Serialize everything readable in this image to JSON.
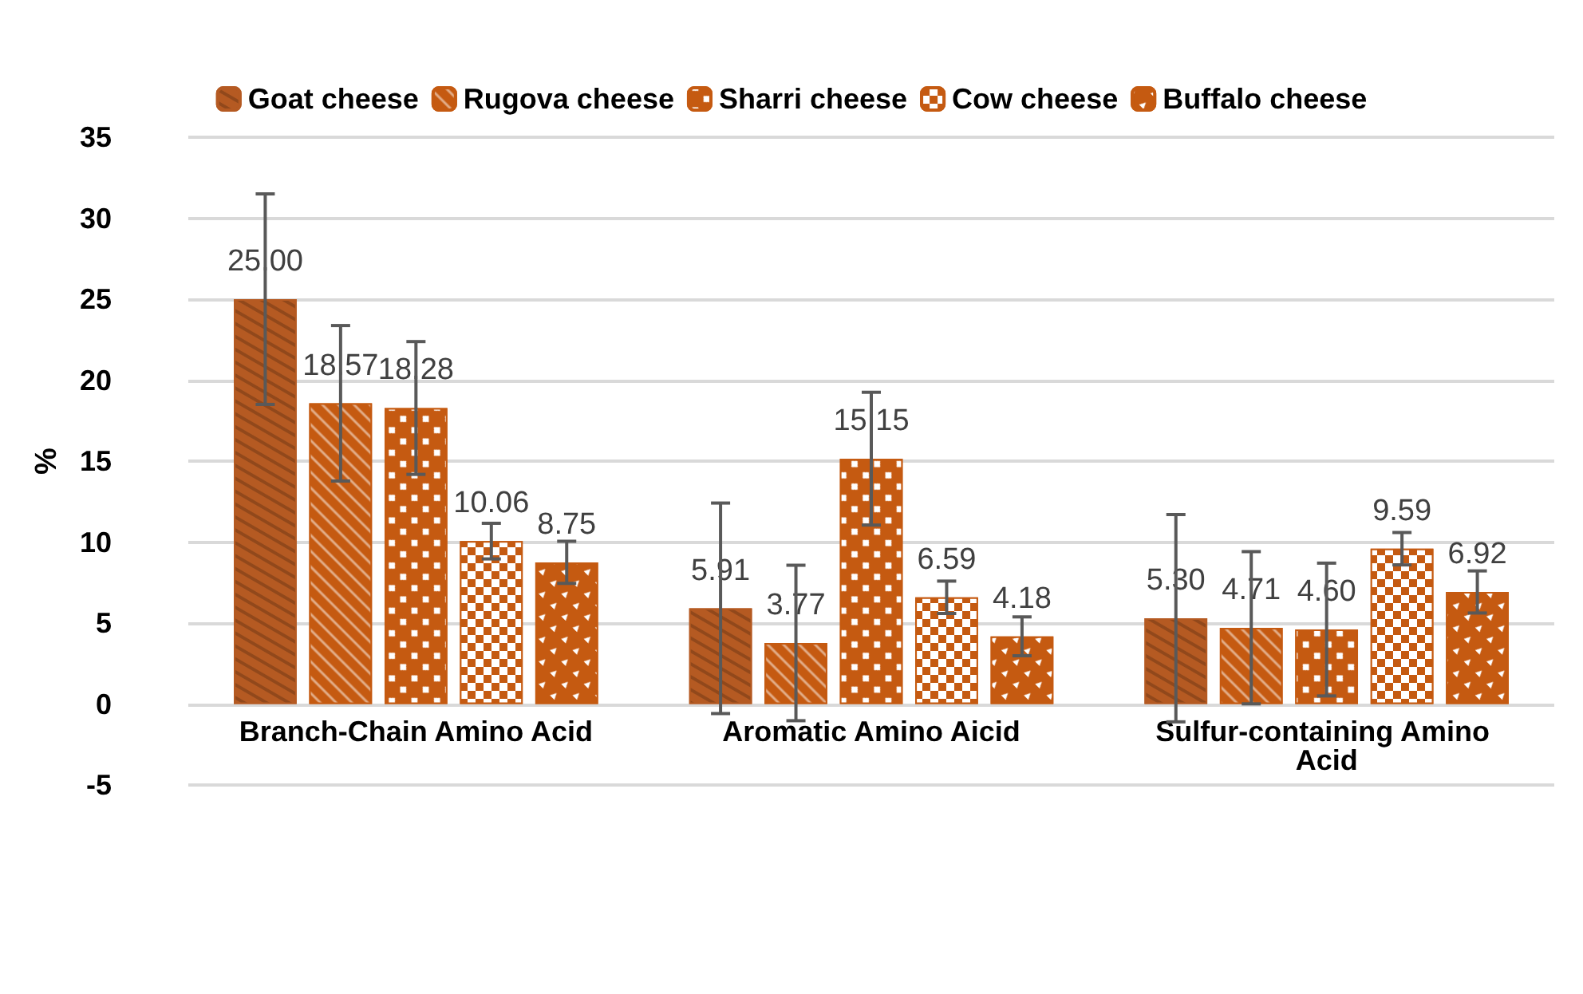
{
  "chart_data": {
    "type": "bar",
    "ylabel": "%",
    "categories": [
      "Branch-Chain Amino Acid",
      "Aromatic Amino Aicid",
      "Sulfur-containing Amino Acid"
    ],
    "series": [
      {
        "name": "Goat cheese",
        "color": "#b55a22",
        "values": [
          25.0,
          5.91,
          5.3
        ],
        "errors": [
          6.5,
          6.5,
          6.4
        ],
        "value_labels": [
          "25.00",
          "5.91",
          "5.30"
        ]
      },
      {
        "name": "Rugova cheese",
        "color": "#c55a11",
        "values": [
          18.57,
          3.77,
          4.71
        ],
        "errors": [
          4.8,
          4.8,
          4.7
        ],
        "value_labels": [
          "18.57",
          "3.77",
          "4.71"
        ]
      },
      {
        "name": "Sharri cheese",
        "color": "#c55a11",
        "values": [
          18.28,
          15.15,
          4.6
        ],
        "errors": [
          4.1,
          4.1,
          4.1
        ],
        "value_labels": [
          "18.28",
          "15.15",
          "4.60"
        ]
      },
      {
        "name": "Cow cheese",
        "color": "#c55a11",
        "values": [
          10.06,
          6.59,
          9.59
        ],
        "errors": [
          1.1,
          1.0,
          1.0
        ],
        "value_labels": [
          "10.06",
          "6.59",
          "9.59"
        ]
      },
      {
        "name": "Buffalo cheese",
        "color": "#c55a11",
        "values": [
          8.75,
          4.18,
          6.92
        ],
        "errors": [
          1.3,
          1.2,
          1.3
        ],
        "value_labels": [
          "8.75",
          "4.18",
          "6.92"
        ]
      }
    ],
    "ylim": [
      -5,
      35
    ],
    "yticks": [
      -5,
      0,
      5,
      10,
      15,
      20,
      25,
      30,
      35
    ],
    "grid": "y",
    "legend": "top"
  }
}
